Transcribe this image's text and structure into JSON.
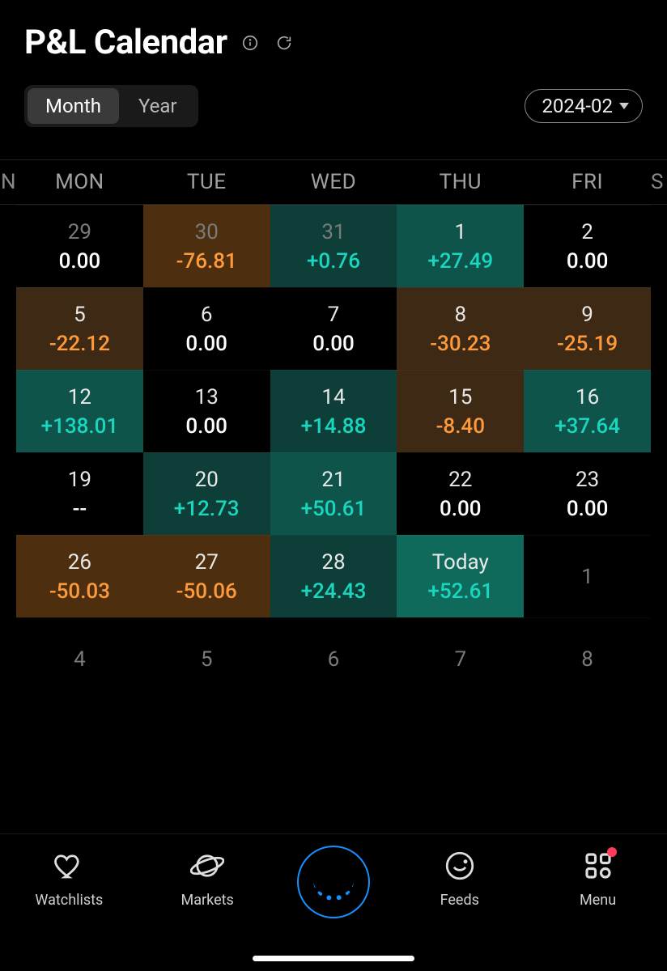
{
  "header": {
    "title": "P&L Calendar"
  },
  "controls": {
    "tabs": [
      {
        "label": "Month",
        "active": true
      },
      {
        "label": "Year",
        "active": false
      }
    ],
    "period": "2024-02"
  },
  "weekdays": {
    "left_edge": "N",
    "days": [
      "MON",
      "TUE",
      "WED",
      "THU",
      "FRI"
    ],
    "right_edge": "S"
  },
  "colors": {
    "positive_text": "#19d6bf",
    "negative_text": "#ff9a3c",
    "zero_text": "#ffffff",
    "bg_black": "#000000",
    "bg_pos1": "#0d3e37",
    "bg_pos2": "#0f544a",
    "bg_pos3": "#106a5c",
    "bg_neg1": "#3e2a14",
    "bg_neg2": "#4d2f10"
  },
  "calendar": {
    "rows": [
      [
        {
          "day": "29",
          "value": "0.00",
          "sign": "zero",
          "bg": "bg-neutral",
          "muted": true
        },
        {
          "day": "30",
          "value": "-76.81",
          "sign": "neg",
          "bg": "bg-neg2",
          "muted": true
        },
        {
          "day": "31",
          "value": "+0.76",
          "sign": "pos",
          "bg": "bg-pos1",
          "muted": true
        },
        {
          "day": "1",
          "value": "+27.49",
          "sign": "pos",
          "bg": "bg-pos2"
        },
        {
          "day": "2",
          "value": "0.00",
          "sign": "zero",
          "bg": "bg-neutral"
        }
      ],
      [
        {
          "day": "5",
          "value": "-22.12",
          "sign": "neg",
          "bg": "bg-neg1"
        },
        {
          "day": "6",
          "value": "0.00",
          "sign": "zero",
          "bg": "bg-neutral"
        },
        {
          "day": "7",
          "value": "0.00",
          "sign": "zero",
          "bg": "bg-neutral"
        },
        {
          "day": "8",
          "value": "-30.23",
          "sign": "neg",
          "bg": "bg-neg1"
        },
        {
          "day": "9",
          "value": "-25.19",
          "sign": "neg",
          "bg": "bg-neg1"
        }
      ],
      [
        {
          "day": "12",
          "value": "+138.01",
          "sign": "pos",
          "bg": "bg-pos2"
        },
        {
          "day": "13",
          "value": "0.00",
          "sign": "zero",
          "bg": "bg-neutral"
        },
        {
          "day": "14",
          "value": "+14.88",
          "sign": "pos",
          "bg": "bg-pos1"
        },
        {
          "day": "15",
          "value": "-8.40",
          "sign": "neg",
          "bg": "bg-neg1"
        },
        {
          "day": "16",
          "value": "+37.64",
          "sign": "pos",
          "bg": "bg-pos2"
        }
      ],
      [
        {
          "day": "19",
          "value": "--",
          "sign": "zero",
          "bg": "bg-neutral"
        },
        {
          "day": "20",
          "value": "+12.73",
          "sign": "pos",
          "bg": "bg-pos1"
        },
        {
          "day": "21",
          "value": "+50.61",
          "sign": "pos",
          "bg": "bg-pos2"
        },
        {
          "day": "22",
          "value": "0.00",
          "sign": "zero",
          "bg": "bg-neutral"
        },
        {
          "day": "23",
          "value": "0.00",
          "sign": "zero",
          "bg": "bg-neutral"
        }
      ],
      [
        {
          "day": "26",
          "value": "-50.03",
          "sign": "neg",
          "bg": "bg-neg2"
        },
        {
          "day": "27",
          "value": "-50.06",
          "sign": "neg",
          "bg": "bg-neg2"
        },
        {
          "day": "28",
          "value": "+24.43",
          "sign": "pos",
          "bg": "bg-pos1"
        },
        {
          "day": "Today",
          "value": "+52.61",
          "sign": "pos",
          "bg": "bg-pos3"
        },
        {
          "day": "1",
          "value": "",
          "sign": "none",
          "bg": "bg-neutral",
          "muted": true
        }
      ],
      [
        {
          "day": "4",
          "value": "",
          "sign": "none",
          "bg": "bg-neutral",
          "muted": true
        },
        {
          "day": "5",
          "value": "",
          "sign": "none",
          "bg": "bg-neutral",
          "muted": true
        },
        {
          "day": "6",
          "value": "",
          "sign": "none",
          "bg": "bg-neutral",
          "muted": true
        },
        {
          "day": "7",
          "value": "",
          "sign": "none",
          "bg": "bg-neutral",
          "muted": true
        },
        {
          "day": "8",
          "value": "",
          "sign": "none",
          "bg": "bg-neutral",
          "muted": true
        }
      ]
    ]
  },
  "bottom_nav": {
    "items": [
      {
        "icon": "heart",
        "label": "Watchlists"
      },
      {
        "icon": "planet",
        "label": "Markets"
      },
      {
        "icon": "center",
        "label": ""
      },
      {
        "icon": "chat",
        "label": "Feeds"
      },
      {
        "icon": "grid",
        "label": "Menu",
        "badge": true
      }
    ]
  }
}
